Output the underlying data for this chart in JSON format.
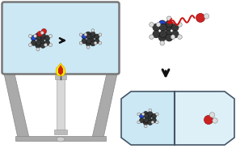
{
  "bg_color": "#ffffff",
  "flask_bg": "#cce8f4",
  "stand_color": "#aaaaaa",
  "candle_color": "#d8d8d8",
  "flame_yellow": "#ffee00",
  "flame_red": "#cc2200",
  "gray_mol": "#606060",
  "dark_mol": "#383838",
  "white_mol": "#dddddd",
  "blue_mol": "#2244cc",
  "red_mol": "#cc2222",
  "arrow_black": "#111111",
  "arrow_red": "#cc1111",
  "cell_blue": "#cce8f4",
  "cell_light": "#ddf0f8"
}
